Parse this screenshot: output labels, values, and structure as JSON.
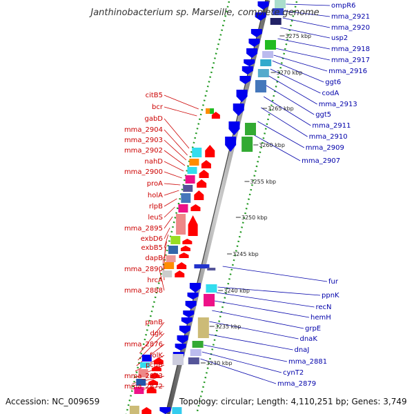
{
  "title": "Janthinobacterium sp. Marseille, complete genome",
  "footer": {
    "accession": "Accession: NC_009659",
    "topology": "Topology: circular; Length: 4,110,251 bp; Genes: 3,749"
  },
  "scale_ticks": [
    "3275 kbp",
    "3270 kbp",
    "3265 kbp",
    "3260 kbp",
    "3255 kbp",
    "3250 kbp",
    "3245 kbp",
    "3240 kbp",
    "3235 kbp",
    "3230 kbp"
  ],
  "left_labels": [
    "citB5",
    "bcr",
    "gabD",
    "mma_2904",
    "mma_2903",
    "mma_2902",
    "nahD",
    "mma_2900",
    "proA",
    "holA",
    "rlpB",
    "leuS",
    "mma_2895",
    "exbD6",
    "exbB5",
    "dapB",
    "mma_2890",
    "hrcA",
    "mma_2888",
    "panB",
    "dgk",
    "mma_2876",
    "folK",
    "pcnB",
    "mma_2873",
    "mma_2872"
  ],
  "right_labels": [
    "ompR6",
    "mma_2921",
    "mma_2920",
    "usp2",
    "mma_2918",
    "mma_2917",
    "mma_2916",
    "ggt6",
    "codA",
    "mma_2913",
    "ggt5",
    "mma_2911",
    "mma_2910",
    "mma_2909",
    "mma_2907",
    "fur",
    "ppnK",
    "recN",
    "hemH",
    "grpE",
    "dnaK",
    "dnaJ",
    "mma_2881",
    "cynT2",
    "mma_2879"
  ],
  "colors": {
    "left_label": "#cc0000",
    "right_label": "#0000aa",
    "reverse_strand": "#ff0000",
    "forward_strand": "#0000ee",
    "rna": "#22bb22",
    "backbone": "#888888",
    "dots": "#229922"
  }
}
